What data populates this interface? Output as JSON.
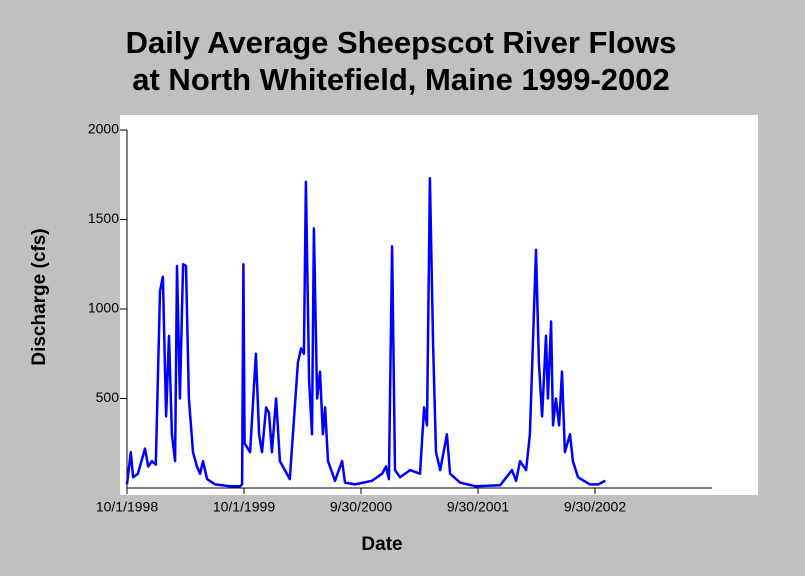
{
  "chart_data": {
    "type": "line",
    "title": "Daily Average Sheepscot River Flows",
    "subtitle": "at North Whitefield, Maine 1999-2002",
    "xlabel": "Date",
    "ylabel": "Discharge (cfs)",
    "ylim": [
      0,
      2000
    ],
    "yticks": [
      500,
      1000,
      1500,
      2000
    ],
    "xlim": [
      "1998-10-01",
      "2003-09-30"
    ],
    "xticks": [
      {
        "value": "1998-10-01",
        "label": "10/1/1998"
      },
      {
        "value": "1999-10-01",
        "label": "10/1/1999"
      },
      {
        "value": "2000-09-30",
        "label": "9/30/2000"
      },
      {
        "value": "2001-09-30",
        "label": "9/30/2001"
      },
      {
        "value": "2002-09-30",
        "label": "9/30/2002"
      }
    ],
    "series": [
      {
        "color": "#0000ff",
        "x": [
          "1998-10-01",
          "1998-10-13",
          "1998-10-20",
          "1998-11-04",
          "1998-11-26",
          "1998-12-06",
          "1998-12-18",
          "1998-12-30",
          "1999-01-12",
          "1999-01-21",
          "1999-01-31",
          "1999-02-09",
          "1999-02-18",
          "1999-02-28",
          "1999-03-06",
          "1999-03-15",
          "1999-03-25",
          "1999-04-03",
          "1999-04-12",
          "1999-04-25",
          "1999-05-07",
          "1999-05-17",
          "1999-05-26",
          "1999-06-08",
          "1999-07-03",
          "1999-08-18",
          "1999-09-19",
          "1999-09-25",
          "1999-09-29",
          "1999-10-03",
          "1999-10-20",
          "1999-11-07",
          "1999-11-17",
          "1999-11-26",
          "1999-12-09",
          "1999-12-18",
          "1999-12-27",
          "2000-01-09",
          "2000-01-21",
          "2000-02-21",
          "2000-03-17",
          "2000-03-27",
          "2000-04-05",
          "2000-04-11",
          "2000-04-21",
          "2000-04-30",
          "2000-05-06",
          "2000-05-16",
          "2000-05-25",
          "2000-06-03",
          "2000-06-10",
          "2000-06-19",
          "2000-07-11",
          "2000-08-02",
          "2000-08-11",
          "2000-09-11",
          "2000-11-03",
          "2000-12-05",
          "2000-12-17",
          "2000-12-26",
          "2001-01-05",
          "2001-01-14",
          "2001-01-30",
          "2001-03-02",
          "2001-04-02",
          "2001-04-15",
          "2001-04-24",
          "2001-05-03",
          "2001-05-13",
          "2001-05-22",
          "2001-06-04",
          "2001-06-25",
          "2001-07-05",
          "2001-08-05",
          "2001-09-21",
          "2001-12-08",
          "2002-01-14",
          "2002-01-27",
          "2002-02-08",
          "2002-02-27",
          "2002-03-11",
          "2002-03-30",
          "2002-04-08",
          "2002-04-18",
          "2002-04-30",
          "2002-05-06",
          "2002-05-16",
          "2002-05-22",
          "2002-05-31",
          "2002-06-10",
          "2002-06-19",
          "2002-06-28",
          "2002-07-14",
          "2002-07-23",
          "2002-08-08",
          "2002-09-14",
          "2002-10-10",
          "2002-11-01"
        ],
        "values": [
          20,
          200,
          60,
          80,
          220,
          120,
          150,
          130,
          1100,
          1180,
          400,
          850,
          300,
          150,
          1240,
          500,
          1250,
          1240,
          500,
          200,
          120,
          80,
          150,
          50,
          20,
          10,
          10,
          20,
          1250,
          250,
          200,
          750,
          300,
          200,
          450,
          420,
          200,
          500,
          150,
          50,
          700,
          780,
          750,
          1710,
          600,
          300,
          1450,
          500,
          650,
          300,
          450,
          150,
          40,
          150,
          30,
          20,
          40,
          80,
          120,
          50,
          1350,
          100,
          60,
          100,
          80,
          450,
          350,
          1730,
          800,
          200,
          100,
          300,
          80,
          30,
          10,
          15,
          100,
          40,
          150,
          100,
          300,
          1330,
          700,
          400,
          850,
          500,
          930,
          350,
          500,
          350,
          650,
          200,
          300,
          150,
          60,
          20,
          20,
          40
        ]
      }
    ]
  }
}
